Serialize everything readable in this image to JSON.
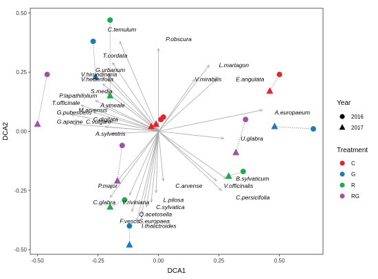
{
  "chart_data": {
    "type": "scatter",
    "xlabel": "DCA1",
    "ylabel": "DCA2",
    "xlim": [
      -0.53,
      0.68
    ],
    "ylim": [
      -0.52,
      0.52
    ],
    "x_ticks": [
      -0.5,
      -0.25,
      0.0,
      0.25,
      0.5
    ],
    "x_tick_labels": [
      "-0.50",
      "-0.25",
      "0.00",
      "0.25",
      "0.50"
    ],
    "y_ticks": [
      -0.5,
      -0.25,
      0.0,
      0.25,
      0.5
    ],
    "y_tick_labels": [
      "-0.50",
      "-0.25",
      "0.00",
      "0.25",
      "0.50"
    ],
    "grid": false,
    "legend_position": "right",
    "legend": {
      "year_title": "Year",
      "years": [
        {
          "label": "2016",
          "shape": "circle"
        },
        {
          "label": "2017",
          "shape": "triangle"
        }
      ],
      "treatment_title": "Treatment",
      "treatments": [
        {
          "label": "C",
          "color": "#e8232a"
        },
        {
          "label": "G",
          "color": "#1e7bb8"
        },
        {
          "label": "R",
          "color": "#1eaa4a"
        },
        {
          "label": "RG",
          "color": "#a04fb0"
        }
      ]
    },
    "points": [
      {
        "treatment": "C",
        "year": "2016",
        "x": 0.5,
        "y": 0.24
      },
      {
        "treatment": "C",
        "year": "2017",
        "x": 0.46,
        "y": 0.17
      },
      {
        "treatment": "C",
        "year": "2016",
        "x": 0.02,
        "y": 0.06
      },
      {
        "treatment": "C",
        "year": "2016",
        "x": 0.01,
        "y": 0.05
      },
      {
        "treatment": "C",
        "year": "2017",
        "x": -0.01,
        "y": 0.03
      },
      {
        "treatment": "C",
        "year": "2017",
        "x": -0.03,
        "y": 0.02
      },
      {
        "treatment": "G",
        "year": "2016",
        "x": -0.27,
        "y": 0.38
      },
      {
        "treatment": "G",
        "year": "2017",
        "x": -0.26,
        "y": 0.23
      },
      {
        "treatment": "G",
        "year": "2016",
        "x": 0.64,
        "y": 0.01
      },
      {
        "treatment": "G",
        "year": "2017",
        "x": 0.48,
        "y": 0.02
      },
      {
        "treatment": "G",
        "year": "2016",
        "x": -0.12,
        "y": -0.4
      },
      {
        "treatment": "G",
        "year": "2017",
        "x": -0.12,
        "y": -0.48
      },
      {
        "treatment": "R",
        "year": "2016",
        "x": -0.2,
        "y": 0.47
      },
      {
        "treatment": "R",
        "year": "2017",
        "x": -0.2,
        "y": 0.15
      },
      {
        "treatment": "R",
        "year": "2016",
        "x": 0.35,
        "y": -0.17
      },
      {
        "treatment": "R",
        "year": "2017",
        "x": 0.29,
        "y": -0.19
      },
      {
        "treatment": "R",
        "year": "2016",
        "x": -0.14,
        "y": -0.29
      },
      {
        "treatment": "R",
        "year": "2017",
        "x": -0.2,
        "y": -0.32
      },
      {
        "treatment": "RG",
        "year": "2016",
        "x": -0.46,
        "y": 0.24
      },
      {
        "treatment": "RG",
        "year": "2017",
        "x": -0.5,
        "y": 0.03
      },
      {
        "treatment": "RG",
        "year": "2016",
        "x": 0.36,
        "y": 0.05
      },
      {
        "treatment": "RG",
        "year": "2017",
        "x": 0.32,
        "y": -0.09
      },
      {
        "treatment": "RG",
        "year": "2016",
        "x": -0.15,
        "y": -0.06
      },
      {
        "treatment": "RG",
        "year": "2017",
        "x": -0.17,
        "y": -0.21
      }
    ],
    "pairs": [
      [
        0,
        1
      ],
      [
        6,
        7
      ],
      [
        8,
        9
      ],
      [
        10,
        11
      ],
      [
        12,
        13
      ],
      [
        14,
        15
      ],
      [
        16,
        17
      ],
      [
        18,
        19
      ],
      [
        20,
        21
      ],
      [
        22,
        23
      ]
    ],
    "vectors": [
      {
        "species": "C.temulum",
        "x": -0.16,
        "y": 0.38,
        "lx": -0.21,
        "ly": 0.43
      },
      {
        "species": "P.obscura",
        "x": 0.0,
        "y": 0.35,
        "lx": 0.03,
        "ly": 0.39
      },
      {
        "species": "T.cordata",
        "x": -0.19,
        "y": 0.29,
        "lx": -0.23,
        "ly": 0.32
      },
      {
        "species": "L.martagon",
        "x": 0.21,
        "y": 0.28,
        "lx": 0.25,
        "ly": 0.28
      },
      {
        "species": "G.urbanum",
        "x": -0.21,
        "y": 0.24,
        "lx": -0.26,
        "ly": 0.26
      },
      {
        "species": "V.hirundinaria",
        "x": -0.21,
        "y": 0.22,
        "lx": -0.32,
        "ly": 0.24
      },
      {
        "species": "V.hederifolia",
        "x": -0.23,
        "y": 0.2,
        "lx": -0.32,
        "ly": 0.22
      },
      {
        "species": "V.mirabilis",
        "x": 0.15,
        "y": 0.22,
        "lx": 0.15,
        "ly": 0.22
      },
      {
        "species": "E.angulata",
        "x": 0.24,
        "y": 0.22,
        "lx": 0.32,
        "ly": 0.22
      },
      {
        "species": "S.media",
        "x": -0.21,
        "y": 0.16,
        "lx": -0.28,
        "ly": 0.17
      },
      {
        "species": "P.lapathifolium",
        "x": -0.26,
        "y": 0.13,
        "lx": -0.41,
        "ly": 0.15
      },
      {
        "species": "A.vineale",
        "x": -0.22,
        "y": 0.1,
        "lx": -0.24,
        "ly": 0.11
      },
      {
        "species": "T.officinale",
        "x": -0.32,
        "y": 0.11,
        "lx": -0.44,
        "ly": 0.12
      },
      {
        "species": "M.arvensis",
        "x": -0.27,
        "y": 0.08,
        "lx": -0.33,
        "ly": 0.09
      },
      {
        "species": "G.pubescens",
        "x": -0.36,
        "y": 0.07,
        "lx": -0.42,
        "ly": 0.08
      },
      {
        "species": "A.europaeum",
        "x": 0.43,
        "y": 0.09,
        "lx": 0.48,
        "ly": 0.08
      },
      {
        "species": "C.digitata",
        "x": -0.2,
        "y": 0.04,
        "lx": -0.27,
        "ly": 0.05
      },
      {
        "species": "G.aparine",
        "x": -0.35,
        "y": 0.03,
        "lx": -0.42,
        "ly": 0.04
      },
      {
        "species": "C.vulgare",
        "x": -0.22,
        "y": 0.02,
        "lx": -0.3,
        "ly": 0.04
      },
      {
        "species": "A.sylvestris",
        "x": -0.19,
        "y": -0.01,
        "lx": -0.26,
        "ly": -0.01
      },
      {
        "species": "U.glabra",
        "x": 0.27,
        "y": -0.03,
        "lx": 0.34,
        "ly": -0.03
      },
      {
        "species": "B.sylvaticum",
        "x": 0.28,
        "y": -0.2,
        "lx": 0.32,
        "ly": -0.2
      },
      {
        "species": "V.officinalis",
        "x": 0.24,
        "y": -0.21,
        "lx": 0.27,
        "ly": -0.23
      },
      {
        "species": "C.arvense",
        "x": 0.02,
        "y": -0.21,
        "lx": 0.07,
        "ly": -0.23
      },
      {
        "species": "P.major",
        "x": -0.17,
        "y": -0.21,
        "lx": -0.25,
        "ly": -0.23
      },
      {
        "species": "C.persicifolia",
        "x": 0.26,
        "y": -0.25,
        "lx": 0.32,
        "ly": -0.28
      },
      {
        "species": "L.pilosa",
        "x": -0.01,
        "y": -0.26,
        "lx": 0.02,
        "ly": -0.29
      },
      {
        "species": "C.glabra",
        "x": -0.2,
        "y": -0.28,
        "lx": -0.27,
        "ly": -0.3
      },
      {
        "species": "V.riviniana",
        "x": -0.12,
        "y": -0.27,
        "lx": -0.15,
        "ly": -0.3
      },
      {
        "species": "C.sylvatica",
        "x": -0.03,
        "y": -0.3,
        "lx": -0.01,
        "ly": -0.32
      },
      {
        "species": "Q.acetosella",
        "x": -0.05,
        "y": -0.32,
        "lx": -0.08,
        "ly": -0.35
      },
      {
        "species": "S.europaea",
        "x": -0.07,
        "y": -0.35,
        "lx": -0.08,
        "ly": -0.38
      },
      {
        "species": "F.vesca",
        "x": -0.11,
        "y": -0.34,
        "lx": -0.16,
        "ly": -0.38
      },
      {
        "species": "I.thalictroides",
        "x": -0.09,
        "y": -0.38,
        "lx": -0.07,
        "ly": -0.4
      }
    ]
  }
}
